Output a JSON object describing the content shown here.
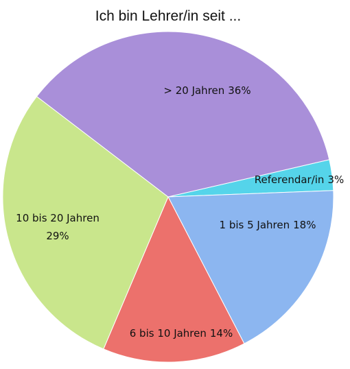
{
  "chart_data": {
    "type": "pie",
    "title": "Ich bin Lehrer/in seit ...",
    "categories": [
      "Referendar/in",
      "1 bis 5 Jahren",
      "6 bis 10 Jahren",
      "10 bis 20 Jahren",
      "> 20 Jahren"
    ],
    "values": [
      3,
      18,
      14,
      29,
      36
    ],
    "value_labels": [
      "3%",
      "18%",
      "14%",
      "29%",
      "36%"
    ],
    "colors": [
      "#55d4ea",
      "#8cb6f0",
      "#ec716c",
      "#c9e68c",
      "#a98fd9"
    ]
  }
}
